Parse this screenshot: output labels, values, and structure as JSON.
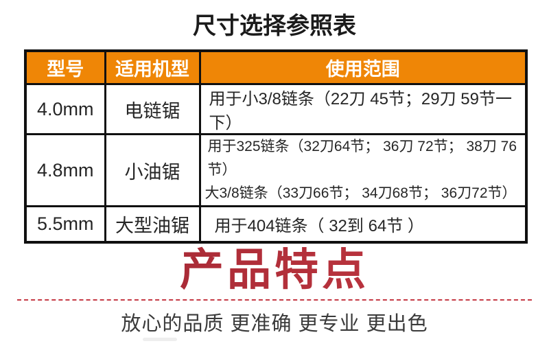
{
  "title": "尺寸选择参照表",
  "table": {
    "header_bg_color": "#ef8606",
    "border_color": "#101010",
    "headers": [
      "型号",
      "适用机型",
      "使用范围"
    ],
    "rows": [
      {
        "model": "4.0mm",
        "machine": "电链锯",
        "range": [
          "用于小3/8链条（22刀 45节；29刀 59节一下）"
        ]
      },
      {
        "model": "4.8mm",
        "machine": "小油锯",
        "range": [
          "用于325链条（32刀64节； 36刀 72节； 38刀 76节）",
          "大3/8链条（33刀66节； 34刀68节； 36刀72节）"
        ]
      },
      {
        "model": "5.5mm",
        "machine": "大型油锯",
        "range": [
          "用于404链条（ 32到 64节 ）"
        ]
      }
    ]
  },
  "features": {
    "title": "产品特点",
    "title_color": "#b02e39",
    "divider_color": "#c53944",
    "tagline": "放心的品质 更准确 更专业 更出色"
  }
}
